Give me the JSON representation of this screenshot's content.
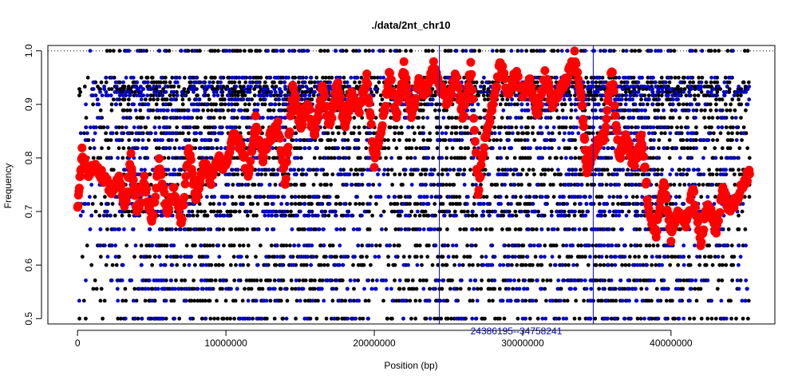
{
  "chart_data": {
    "type": "scatter",
    "title": "./data/2nt_chr10",
    "xlabel": "Position (bp)",
    "ylabel": "Frequency",
    "xlim": [
      -2000000,
      47000000
    ],
    "ylim": [
      0.49,
      1.01
    ],
    "x_ticks": [
      0,
      10000000,
      20000000,
      30000000,
      40000000
    ],
    "x_tick_labels": [
      "0",
      "10000000",
      "20000000",
      "30000000",
      "40000000"
    ],
    "y_ticks": [
      0.5,
      0.6,
      0.7,
      0.8,
      0.9,
      1.0
    ],
    "y_tick_labels": [
      "0.5",
      "0.6",
      "0.7",
      "0.8",
      "0.9",
      "1.0"
    ],
    "reference_line": {
      "y": 1.0,
      "style": "dotted",
      "color": "#000000"
    },
    "highlight_region": {
      "start": 24386195,
      "end": 34758241,
      "label": "24386195--34758241",
      "color": "#0000cc"
    },
    "point_series": [
      {
        "color": "#000000",
        "density_profile": [
          [
            0,
            0.3
          ],
          [
            2500000,
            0.6
          ],
          [
            8500000,
            1.0
          ],
          [
            14000000,
            0.9
          ],
          [
            17500000,
            1.0
          ],
          [
            20000000,
            0.45
          ],
          [
            22000000,
            0.8
          ],
          [
            36000000,
            0.9
          ],
          [
            38000000,
            1.0
          ],
          [
            45300000,
            0.6
          ]
        ]
      },
      {
        "color": "#0000cc",
        "density_profile": [
          [
            0,
            0.1
          ],
          [
            5000000,
            0.5
          ],
          [
            8000000,
            0.4
          ],
          [
            15000000,
            0.4
          ],
          [
            25000000,
            0.25
          ],
          [
            37000000,
            0.55
          ],
          [
            40000000,
            0.45
          ],
          [
            45300000,
            0.2
          ]
        ]
      }
    ],
    "point_levels": [
      0.5,
      0.5333,
      0.5556,
      0.5714,
      0.6,
      0.6154,
      0.6364,
      0.6667,
      0.6923,
      0.7,
      0.7143,
      0.7273,
      0.75,
      0.7692,
      0.7778,
      0.8,
      0.8182,
      0.8333,
      0.8462,
      0.8571,
      0.875,
      0.8889,
      0.9,
      0.9091,
      0.9167,
      0.9231,
      0.9286,
      0.9333,
      0.9412,
      0.95,
      1.0
    ],
    "smoothed_series": {
      "color": "#ff0000",
      "x": [
        0,
        300000,
        700000,
        1200000,
        1800000,
        2300000,
        2800000,
        3200000,
        3600000,
        4000000,
        4500000,
        5000000,
        5500000,
        6000000,
        6500000,
        7000000,
        7500000,
        8000000,
        8500000,
        9000000,
        9500000,
        10000000,
        10500000,
        11000000,
        11500000,
        12000000,
        12500000,
        13000000,
        13500000,
        14000000,
        14500000,
        15000000,
        15500000,
        16000000,
        16500000,
        17000000,
        17500000,
        18000000,
        18500000,
        19000000,
        19500000,
        20000000,
        20500000,
        21000000,
        21500000,
        22000000,
        22500000,
        23000000,
        23500000,
        24000000,
        24500000,
        25000000,
        25500000,
        26000000,
        26500000,
        27000000,
        27500000,
        28000000,
        28500000,
        29000000,
        29500000,
        30000000,
        30500000,
        31000000,
        31500000,
        32000000,
        32500000,
        33000000,
        33500000,
        34000000,
        34300000,
        34600000,
        35000000,
        35500000,
        36000000,
        36500000,
        37000000,
        37500000,
        38000000,
        38500000,
        39000000,
        39500000,
        40000000,
        40500000,
        41000000,
        41500000,
        42000000,
        42500000,
        43000000,
        43500000,
        44000000,
        44500000,
        45000000,
        45300000
      ],
      "y": [
        0.7,
        0.81,
        0.77,
        0.79,
        0.76,
        0.74,
        0.76,
        0.71,
        0.8,
        0.69,
        0.76,
        0.68,
        0.79,
        0.7,
        0.74,
        0.68,
        0.82,
        0.72,
        0.79,
        0.76,
        0.8,
        0.78,
        0.85,
        0.82,
        0.77,
        0.87,
        0.8,
        0.84,
        0.86,
        0.75,
        0.93,
        0.86,
        0.9,
        0.84,
        0.93,
        0.86,
        0.94,
        0.86,
        0.92,
        0.89,
        0.95,
        0.79,
        0.85,
        0.96,
        0.88,
        0.97,
        0.88,
        0.94,
        0.92,
        0.97,
        0.93,
        0.9,
        0.96,
        0.87,
        0.97,
        0.74,
        0.84,
        0.9,
        0.98,
        0.92,
        0.96,
        0.92,
        0.94,
        0.88,
        0.96,
        0.9,
        0.93,
        0.95,
        0.99,
        0.9,
        0.78,
        0.8,
        0.83,
        0.84,
        0.97,
        0.8,
        0.84,
        0.78,
        0.85,
        0.7,
        0.66,
        0.76,
        0.65,
        0.7,
        0.68,
        0.74,
        0.64,
        0.72,
        0.66,
        0.74,
        0.7,
        0.73,
        0.76,
        0.77
      ]
    }
  }
}
